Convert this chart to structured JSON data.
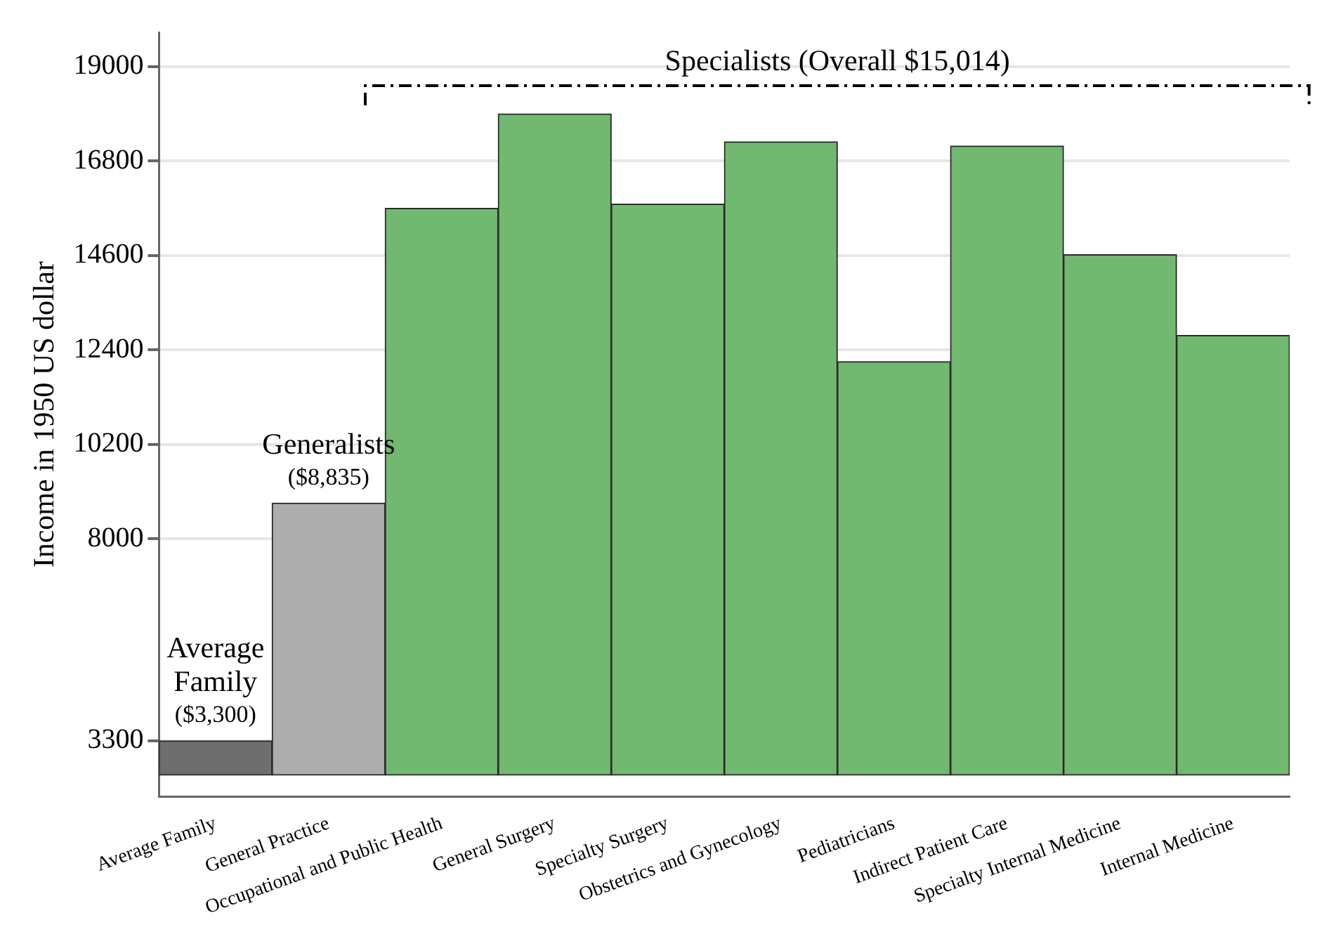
{
  "chart_data": {
    "type": "bar",
    "ylabel": "Income in 1950 US dollar",
    "categories": [
      "Average Family",
      "General Practice",
      "Occupational and Public Health",
      "General Surgery",
      "Specialty Surgery",
      "Obstetrics and Gynecology",
      "Pediatricians",
      "Indirect Patient Care",
      "Specialty Internal Medicine",
      "Internal Medicine"
    ],
    "base": [
      2500,
      2500,
      2500,
      2500,
      2500,
      2500,
      2500,
      2500,
      2500,
      2500
    ],
    "values": [
      800,
      6335,
      13200,
      15400,
      13300,
      14750,
      9630,
      14650,
      12120,
      10240
    ],
    "colors": [
      "#6e6e6e",
      "#adadad",
      "#71b970",
      "#71b970",
      "#71b970",
      "#71b970",
      "#71b970",
      "#71b970",
      "#71b970",
      "#71b970"
    ],
    "ylim": [
      2000,
      19800
    ],
    "yticks": [
      3300,
      8000,
      10200,
      12400,
      14600,
      16800,
      19000
    ],
    "grid": "y",
    "legend": false,
    "annotations": [
      {
        "text": "Average Family",
        "x": "Average Family",
        "y": 3300
      },
      {
        "text": "($3,300)",
        "x": "Average Family",
        "y": 3300
      },
      {
        "text": "Generalists",
        "x": "General Practice",
        "y": 8835
      },
      {
        "text": "($8,835)",
        "x": "General Practice",
        "y": 8835
      },
      "Specialists (Overall $15,014)"
    ]
  }
}
